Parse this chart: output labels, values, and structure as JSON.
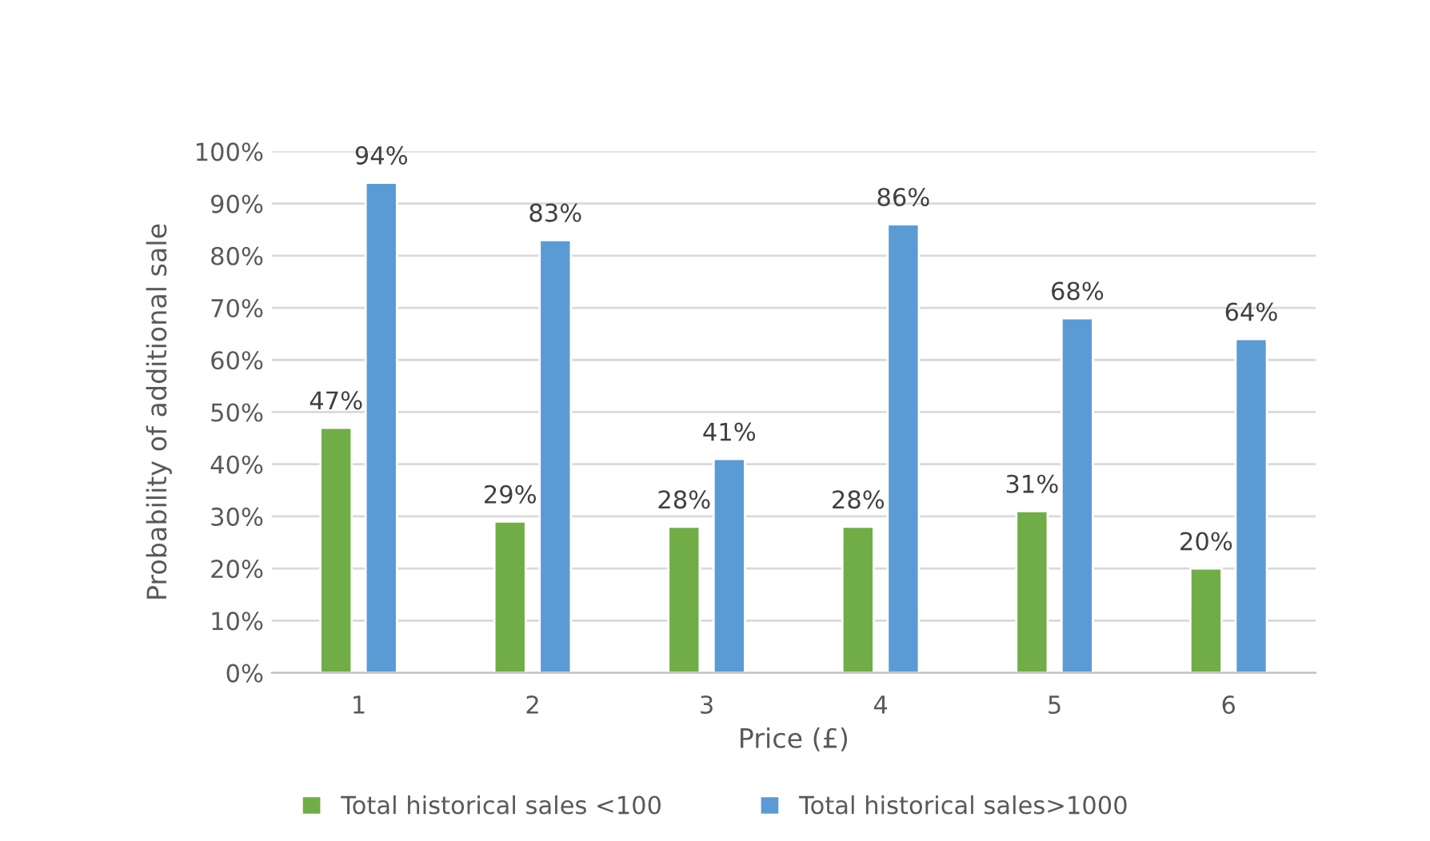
{
  "chart_data": {
    "type": "bar",
    "xlabel": "Price (£)",
    "ylabel": "Probability of additional sale",
    "categories": [
      "1",
      "2",
      "3",
      "4",
      "5",
      "6"
    ],
    "series": [
      {
        "name": "Total historical sales <100",
        "color": "#70ad47",
        "values": [
          47,
          29,
          28,
          28,
          31,
          20
        ],
        "value_labels": [
          "47%",
          "29%",
          "28%",
          "28%",
          "31%",
          "20%"
        ]
      },
      {
        "name": "Total historical sales>1000",
        "color": "#5b9bd5",
        "values": [
          94,
          83,
          41,
          86,
          68,
          64
        ],
        "value_labels": [
          "94%",
          "83%",
          "41%",
          "86%",
          "68%",
          "64%"
        ]
      }
    ],
    "ylim": [
      0,
      100
    ],
    "yticks": [
      {
        "value": 0,
        "label": "0%"
      },
      {
        "value": 10,
        "label": "10%"
      },
      {
        "value": 20,
        "label": "20%"
      },
      {
        "value": 30,
        "label": "30%"
      },
      {
        "value": 40,
        "label": "40%"
      },
      {
        "value": 50,
        "label": "50%"
      },
      {
        "value": 60,
        "label": "60%"
      },
      {
        "value": 70,
        "label": "70%"
      },
      {
        "value": 80,
        "label": "80%"
      },
      {
        "value": 90,
        "label": "90%"
      },
      {
        "value": 100,
        "label": "100%"
      }
    ],
    "grid": "y",
    "legend": "bottom"
  }
}
